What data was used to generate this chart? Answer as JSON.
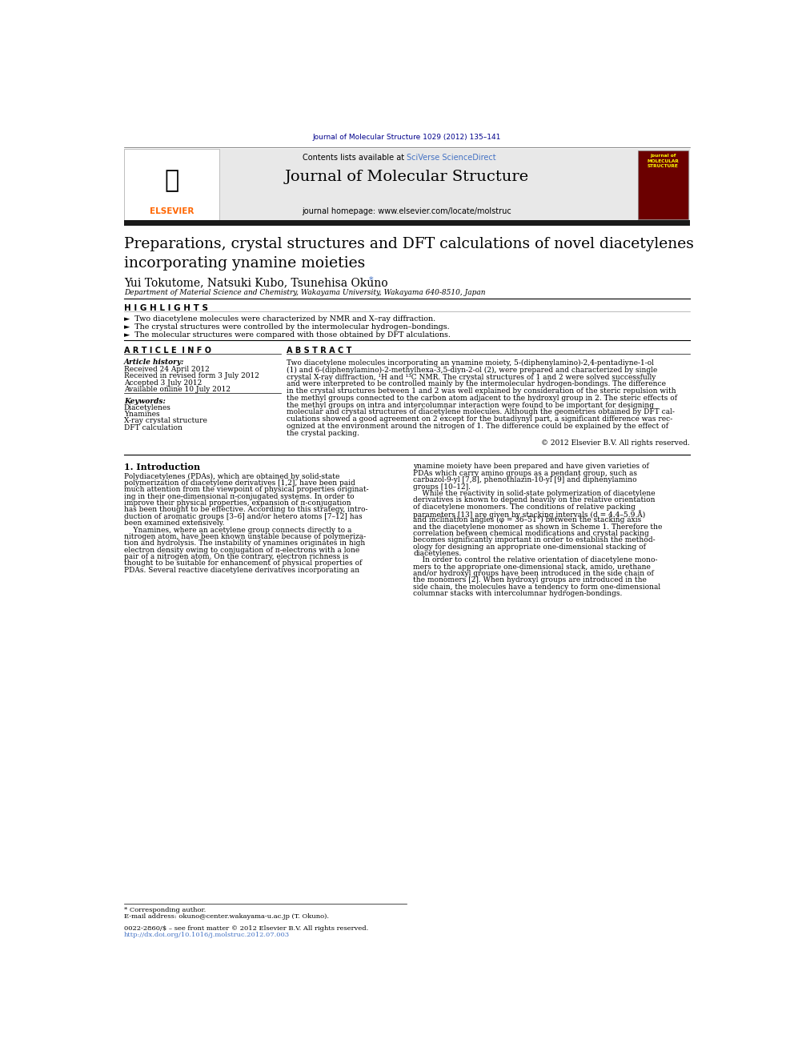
{
  "journal_ref": "Journal of Molecular Structure 1029 (2012) 135–141",
  "journal_ref_color": "#00008B",
  "header_bg": "#E8E8E8",
  "header_text1": "Contents lists available at ",
  "header_link1": "SciVerse ScienceDirect",
  "header_link_color": "#4472C4",
  "journal_name": "Journal of Molecular Structure",
  "journal_homepage": "journal homepage: www.elsevier.com/locate/molstruc",
  "thick_bar_color": "#1a1a1a",
  "title": "Preparations, crystal structures and DFT calculations of novel diacetylenes\nincorporating ynamine moieties",
  "authors": "Yui Tokutome, Natsuki Kubo, Tsunehisa Okuno",
  "author_asterisk": "*",
  "affiliation": "Department of Material Science and Chemistry, Wakayama University, Wakayama 640-8510, Japan",
  "highlights_label": "H I G H L I G H T S",
  "highlight1": "►  Two diacetylene molecules were characterized by NMR and X–ray diffraction.",
  "highlight2": "►  The crystal structures were controlled by the intermolecular hydrogen–bondings.",
  "highlight3": "►  The molecular structures were compared with those obtained by DFT alculations.",
  "article_info_label": "A R T I C L E  I N F O",
  "abstract_label": "A B S T R A C T",
  "article_history_label": "Article history:",
  "received": "Received 24 April 2012",
  "revised": "Received in revised form 3 July 2012",
  "accepted": "Accepted 3 July 2012",
  "available": "Available online 10 July 2012",
  "keywords_label": "Keywords:",
  "keyword1": "Diacetylenes",
  "keyword2": "Ynamines",
  "keyword3": "X-ray crystal structure",
  "keyword4": "DFT calculation",
  "copyright": "© 2012 Elsevier B.V. All rights reserved.",
  "intro_heading": "1. Introduction",
  "abstract_lines": [
    "Two diacetylene molecules incorporating an ynamine moiety, 5-(diphenylamino)-2,4-pentadiyne-1-ol",
    "(1) and 6-(diphenylamino)-2-methylhexa-3,5-diyn-2-ol (2), were prepared and characterized by single",
    "crystal X-ray diffraction, ¹H and ¹³C NMR. The crystal structures of 1 and 2 were solved successfully",
    "and were interpreted to be controlled mainly by the intermolecular hydrogen-bondings. The difference",
    "in the crystal structures between 1 and 2 was well explained by consideration of the steric repulsion with",
    "the methyl groups connected to the carbon atom adjacent to the hydroxyl group in 2. The steric effects of",
    "the methyl groups on intra and intercolumnar interaction were found to be important for designing",
    "molecular and crystal structures of diacetylene molecules. Although the geometries obtained by DFT cal-",
    "culations showed a good agreement on 2 except for the butadiynyl part, a significant difference was rec-",
    "ognized at the environment around the nitrogen of 1. The difference could be explained by the effect of",
    "the crystal packing."
  ],
  "intro_left_lines": [
    "Polydiacetylenes (PDAs), which are obtained by solid-state",
    "polymerization of diacetylene derivatives [1,2], have been paid",
    "much attention from the viewpoint of physical properties originat-",
    "ing in their one-dimensional π-conjugated systems. In order to",
    "improve their physical properties, expansion of π-conjugation",
    "has been thought to be effective. According to this strategy, intro-",
    "duction of aromatic groups [3–6] and/or hetero atoms [7–12] has",
    "been examined extensively.",
    "    Ynamines, where an acetylene group connects directly to a",
    "nitrogen atom, have been known unstable because of polymeriza-",
    "tion and hydrolysis. The instability of ynamines originates in high",
    "electron density owing to conjugation of π-electrons with a lone",
    "pair of a nitrogen atom. On the contrary, electron richness is",
    "thought to be suitable for enhancement of physical properties of",
    "PDAs. Several reactive diacetylene derivatives incorporating an"
  ],
  "intro_right_lines": [
    "ynamine moiety have been prepared and have given varieties of",
    "PDAs which carry amino groups as a pendant group, such as",
    "carbazol-9-yl [7,8], phenothlazin-10-yl [9] and diphenylamino",
    "groups [10–12].",
    "    While the reactivity in solid-state polymerization of diacetylene",
    "derivatives is known to depend heavily on the relative orientation",
    "of diacetylene monomers. The conditions of relative packing",
    "parameters [13] are given by stacking intervals (d = 4.4–5.9 Å)",
    "and inclination angles (φ = 36–51°) between the stacking axis",
    "and the diacetylene monomer as shown in Scheme 1. Therefore the",
    "correlation between chemical modifications and crystal packing",
    "becomes significantly important in order to establish the method-",
    "ology for designing an appropriate one-dimensional stacking of",
    "diacetylenes.",
    "    In order to control the relative orientation of diacetylene mono-",
    "mers to the appropriate one-dimensional stack, amido, urethane",
    "and/or hydroxyl groups have been introduced in the side chain of",
    "the monomers [2]. When hydroxyl groups are introduced in the",
    "side chain, the molecules have a tendency to form one-dimensional",
    "columnar stacks with intercolumnar hydrogen-bondings."
  ],
  "footnote1": "* Corresponding author.",
  "footnote2": "E-mail address: okuno@center.wakayama-u.ac.jp (T. Okuno).",
  "footnote3": "0022-2860/$ – see front matter © 2012 Elsevier B.V. All rights reserved.",
  "footnote4": "http://dx.doi.org/10.1016/j.molstruc.2012.07.003",
  "bg_color": "#FFFFFF",
  "text_color": "#000000",
  "elsevier_orange": "#FF6600"
}
